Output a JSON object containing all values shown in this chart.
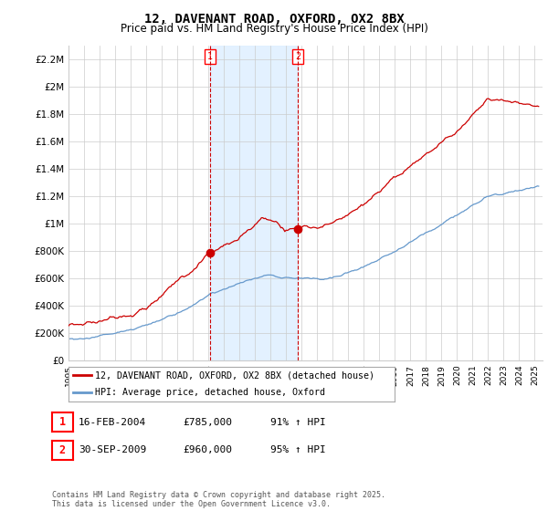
{
  "title": "12, DAVENANT ROAD, OXFORD, OX2 8BX",
  "subtitle": "Price paid vs. HM Land Registry's House Price Index (HPI)",
  "ylim": [
    0,
    2300000
  ],
  "yticks": [
    0,
    200000,
    400000,
    600000,
    800000,
    1000000,
    1200000,
    1400000,
    1600000,
    1800000,
    2000000,
    2200000
  ],
  "ytick_labels": [
    "£0",
    "£200K",
    "£400K",
    "£600K",
    "£800K",
    "£1M",
    "£1.2M",
    "£1.4M",
    "£1.6M",
    "£1.8M",
    "£2M",
    "£2.2M"
  ],
  "xlim_start": 1995.0,
  "xlim_end": 2025.5,
  "transaction1_x": 2004.12,
  "transaction1_y": 785000,
  "transaction2_x": 2009.75,
  "transaction2_y": 960000,
  "transaction1_date": "16-FEB-2004",
  "transaction1_price": "£785,000",
  "transaction1_hpi": "91% ↑ HPI",
  "transaction2_date": "30-SEP-2009",
  "transaction2_price": "£960,000",
  "transaction2_hpi": "95% ↑ HPI",
  "legend_line1": "12, DAVENANT ROAD, OXFORD, OX2 8BX (detached house)",
  "legend_line2": "HPI: Average price, detached house, Oxford",
  "footer": "Contains HM Land Registry data © Crown copyright and database right 2025.\nThis data is licensed under the Open Government Licence v3.0.",
  "line_color_red": "#cc0000",
  "line_color_blue": "#6699cc",
  "shaded_color": "#ddeeff",
  "grid_color": "#cccccc",
  "background_color": "#ffffff"
}
